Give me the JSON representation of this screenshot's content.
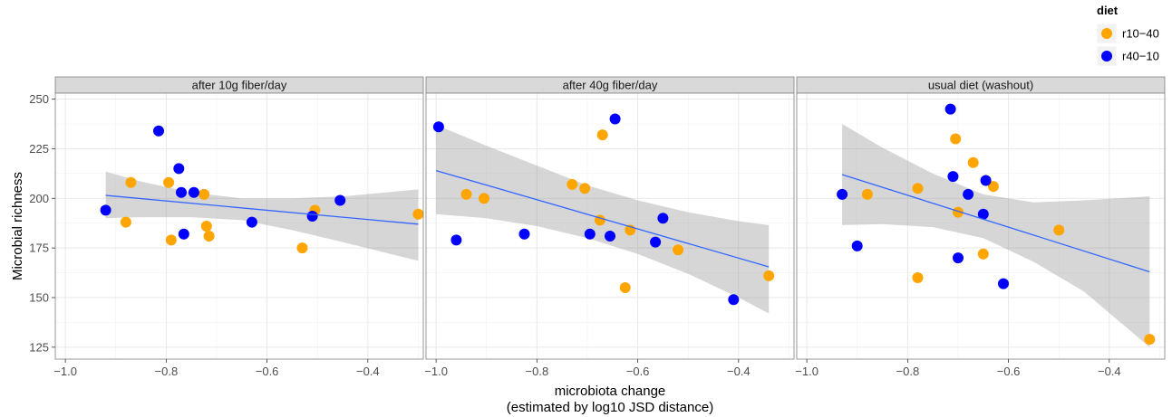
{
  "chart_data": {
    "type": "scatter",
    "ylabel": "Microbial richness",
    "xlabel_lines": [
      "microbiota change",
      "(estimated by log10 JSD distance)"
    ],
    "xlim": [
      -1.02,
      -0.29
    ],
    "ylim": [
      119,
      253
    ],
    "x_ticks": [
      -1.0,
      -0.8,
      -0.6,
      -0.4
    ],
    "x_tick_labels": [
      "−1.0",
      "−0.8",
      "−0.6",
      "−0.4"
    ],
    "y_ticks": [
      125,
      150,
      175,
      200,
      225,
      250
    ],
    "y_tick_labels": [
      "125",
      "150",
      "175",
      "200",
      "225",
      "250"
    ],
    "legend": {
      "title": "diet",
      "placement": "top-right",
      "entries": [
        {
          "label": "r10−40",
          "color": "#FFA500"
        },
        {
          "label": "r40−10",
          "color": "#0000FF"
        }
      ]
    },
    "colors": {
      "r10-40": "#FFA500",
      "r40-10": "#0000FF",
      "fit_line": "#3366FF",
      "band": "#999999",
      "panel_bg": "#FFFFFF",
      "strip_bg": "#D9D9D9"
    },
    "panels": [
      {
        "title": "after 10g fiber/day",
        "fit": {
          "x": [
            -0.92,
            -0.3
          ],
          "y": [
            201.5,
            187
          ]
        },
        "band": {
          "x": [
            -0.92,
            -0.85,
            -0.75,
            -0.65,
            -0.55,
            -0.45,
            -0.3
          ],
          "upper": [
            213.5,
            208.5,
            203,
            200,
            200,
            201,
            204.5
          ],
          "lower": [
            190,
            190.5,
            190.5,
            189,
            184,
            178,
            168.5
          ]
        },
        "series": [
          {
            "name": "r10-40",
            "points": [
              [
                -0.87,
                208
              ],
              [
                -0.88,
                188
              ],
              [
                -0.795,
                208
              ],
              [
                -0.79,
                179
              ],
              [
                -0.725,
                202
              ],
              [
                -0.72,
                186
              ],
              [
                -0.715,
                181
              ],
              [
                -0.53,
                175
              ],
              [
                -0.505,
                194
              ],
              [
                -0.3,
                192
              ]
            ]
          },
          {
            "name": "r40-10",
            "points": [
              [
                -0.92,
                194
              ],
              [
                -0.815,
                234
              ],
              [
                -0.775,
                215
              ],
              [
                -0.77,
                203
              ],
              [
                -0.765,
                182
              ],
              [
                -0.745,
                203
              ],
              [
                -0.63,
                188
              ],
              [
                -0.51,
                191
              ],
              [
                -0.455,
                199
              ]
            ]
          }
        ]
      },
      {
        "title": "after 40g fiber/day",
        "fit": {
          "x": [
            -1.0,
            -0.34
          ],
          "y": [
            214,
            165.5
          ]
        },
        "band": {
          "x": [
            -1.0,
            -0.9,
            -0.8,
            -0.7,
            -0.6,
            -0.5,
            -0.4,
            -0.34
          ],
          "upper": [
            237,
            226.5,
            216.5,
            206.5,
            199,
            193,
            188.5,
            186.5
          ],
          "lower": [
            192,
            190,
            186,
            180,
            172,
            162,
            150,
            142
          ]
        },
        "series": [
          {
            "name": "r10-40",
            "points": [
              [
                -0.94,
                202
              ],
              [
                -0.905,
                200
              ],
              [
                -0.73,
                207
              ],
              [
                -0.705,
                205
              ],
              [
                -0.675,
                189
              ],
              [
                -0.67,
                232
              ],
              [
                -0.625,
                155
              ],
              [
                -0.615,
                184
              ],
              [
                -0.52,
                174
              ],
              [
                -0.34,
                161
              ]
            ]
          },
          {
            "name": "r40-10",
            "points": [
              [
                -0.995,
                236
              ],
              [
                -0.96,
                179
              ],
              [
                -0.825,
                182
              ],
              [
                -0.695,
                182
              ],
              [
                -0.655,
                181
              ],
              [
                -0.645,
                240
              ],
              [
                -0.565,
                178
              ],
              [
                -0.55,
                190
              ],
              [
                -0.41,
                149
              ]
            ]
          }
        ]
      },
      {
        "title": "usual diet (washout)",
        "fit": {
          "x": [
            -0.93,
            -0.32
          ],
          "y": [
            212,
            163
          ]
        },
        "band": {
          "x": [
            -0.93,
            -0.85,
            -0.75,
            -0.65,
            -0.55,
            -0.45,
            -0.32
          ],
          "upper": [
            237.5,
            225.5,
            212.5,
            202,
            198,
            199,
            201
          ],
          "lower": [
            186.5,
            187,
            185.5,
            180,
            168,
            153,
            125
          ]
        },
        "series": [
          {
            "name": "r10-40",
            "points": [
              [
                -0.88,
                202
              ],
              [
                -0.78,
                160
              ],
              [
                -0.78,
                205
              ],
              [
                -0.705,
                230
              ],
              [
                -0.7,
                193
              ],
              [
                -0.67,
                218
              ],
              [
                -0.65,
                172
              ],
              [
                -0.63,
                206
              ],
              [
                -0.5,
                184
              ],
              [
                -0.32,
                129
              ]
            ]
          },
          {
            "name": "r40-10",
            "points": [
              [
                -0.93,
                202
              ],
              [
                -0.9,
                176
              ],
              [
                -0.715,
                245
              ],
              [
                -0.71,
                211
              ],
              [
                -0.7,
                170
              ],
              [
                -0.68,
                202
              ],
              [
                -0.65,
                192
              ],
              [
                -0.645,
                209
              ],
              [
                -0.61,
                157
              ]
            ]
          }
        ]
      }
    ]
  }
}
